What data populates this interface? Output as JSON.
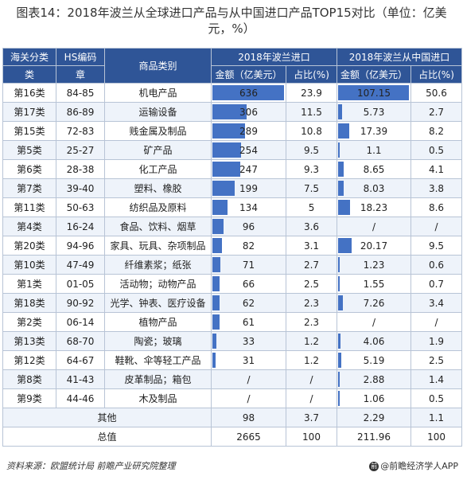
{
  "title": "图表14：2018年波兰从全球进口产品与从中国进口产品TOP15对比（单位：亿美元，%）",
  "headers": {
    "col_class": "海关分类",
    "col_class2": "类",
    "col_hs": "HS编码",
    "col_hs2": "章",
    "col_product": "商品类别",
    "group_global": "2018年波兰进口",
    "group_china": "2018年波兰从中国进口",
    "amount": "金额（亿美元）",
    "share": "占比(%)"
  },
  "bar_max": 636,
  "bar_max_china": 107.15,
  "rows": [
    {
      "cls": "第16类",
      "hs": "84-85",
      "product": "机电产品",
      "g_amount": "636",
      "g_val": 636,
      "g_share": "23.9",
      "c_amount": "107.15",
      "c_val": 107.15,
      "c_share": "50.6"
    },
    {
      "cls": "第17类",
      "hs": "86-89",
      "product": "运输设备",
      "g_amount": "306",
      "g_val": 306,
      "g_share": "11.5",
      "c_amount": "5.73",
      "c_val": 5.73,
      "c_share": "2.7"
    },
    {
      "cls": "第15类",
      "hs": "72-83",
      "product": "贱金属及制品",
      "g_amount": "289",
      "g_val": 289,
      "g_share": "10.8",
      "c_amount": "17.39",
      "c_val": 17.39,
      "c_share": "8.2"
    },
    {
      "cls": "第5类",
      "hs": "25-27",
      "product": "矿产品",
      "g_amount": "254",
      "g_val": 254,
      "g_share": "9.5",
      "c_amount": "1.1",
      "c_val": 1.1,
      "c_share": "0.5"
    },
    {
      "cls": "第6类",
      "hs": "28-38",
      "product": "化工产品",
      "g_amount": "247",
      "g_val": 247,
      "g_share": "9.3",
      "c_amount": "8.65",
      "c_val": 8.65,
      "c_share": "4.1"
    },
    {
      "cls": "第7类",
      "hs": "39-40",
      "product": "塑料、橡胶",
      "g_amount": "199",
      "g_val": 199,
      "g_share": "7.5",
      "c_amount": "8.03",
      "c_val": 8.03,
      "c_share": "3.8"
    },
    {
      "cls": "第11类",
      "hs": "50-63",
      "product": "纺织品及原料",
      "g_amount": "134",
      "g_val": 134,
      "g_share": "5",
      "c_amount": "18.23",
      "c_val": 18.23,
      "c_share": "8.6"
    },
    {
      "cls": "第4类",
      "hs": "16-24",
      "product": "食品、饮料、烟草",
      "g_amount": "96",
      "g_val": 96,
      "g_share": "3.6",
      "c_amount": "/",
      "c_val": 0,
      "c_share": "/"
    },
    {
      "cls": "第20类",
      "hs": "94-96",
      "product": "家具、玩具、杂项制品",
      "g_amount": "82",
      "g_val": 82,
      "g_share": "3.1",
      "c_amount": "20.17",
      "c_val": 20.17,
      "c_share": "9.5"
    },
    {
      "cls": "第10类",
      "hs": "47-49",
      "product": "纤维素浆；纸张",
      "g_amount": "71",
      "g_val": 71,
      "g_share": "2.7",
      "c_amount": "1.23",
      "c_val": 1.23,
      "c_share": "0.6"
    },
    {
      "cls": "第1类",
      "hs": "01-05",
      "product": "活动物；动物产品",
      "g_amount": "66",
      "g_val": 66,
      "g_share": "2.5",
      "c_amount": "1.55",
      "c_val": 1.55,
      "c_share": "0.7"
    },
    {
      "cls": "第18类",
      "hs": "90-92",
      "product": "光学、钟表、医疗设备",
      "g_amount": "62",
      "g_val": 62,
      "g_share": "2.3",
      "c_amount": "7.26",
      "c_val": 7.26,
      "c_share": "3.4"
    },
    {
      "cls": "第2类",
      "hs": "06-14",
      "product": "植物产品",
      "g_amount": "61",
      "g_val": 61,
      "g_share": "2.3",
      "c_amount": "/",
      "c_val": 0,
      "c_share": "/"
    },
    {
      "cls": "第13类",
      "hs": "68-70",
      "product": "陶瓷；玻璃",
      "g_amount": "33",
      "g_val": 33,
      "g_share": "1.2",
      "c_amount": "4.06",
      "c_val": 4.06,
      "c_share": "1.9"
    },
    {
      "cls": "第12类",
      "hs": "64-67",
      "product": "鞋靴、伞等轻工产品",
      "g_amount": "31",
      "g_val": 31,
      "g_share": "1.2",
      "c_amount": "5.19",
      "c_val": 5.19,
      "c_share": "2.5"
    },
    {
      "cls": "第8类",
      "hs": "41-43",
      "product": "皮革制品；箱包",
      "g_amount": "/",
      "g_val": 0,
      "g_share": "/",
      "c_amount": "2.88",
      "c_val": 2.88,
      "c_share": "1.4"
    },
    {
      "cls": "第9类",
      "hs": "44-46",
      "product": "木及制品",
      "g_amount": "/",
      "g_val": 0,
      "g_share": "/",
      "c_amount": "1.06",
      "c_val": 1.06,
      "c_share": "0.5"
    }
  ],
  "summary": [
    {
      "label": "其他",
      "g_amount": "98",
      "g_share": "3.7",
      "c_amount": "2.29",
      "c_share": "1.1"
    },
    {
      "label": "总值",
      "g_amount": "2665",
      "g_share": "100",
      "c_amount": "211.96",
      "c_share": "100"
    }
  ],
  "footer": {
    "source": "资料来源：欧盟统计局 前瞻产业研究院整理",
    "brand": "@前瞻经济学人APP",
    "brand_logo": "前"
  },
  "colors": {
    "header_bg": "#2f5597",
    "bar": "#4472c4",
    "row_alt": "#eef3fa"
  }
}
